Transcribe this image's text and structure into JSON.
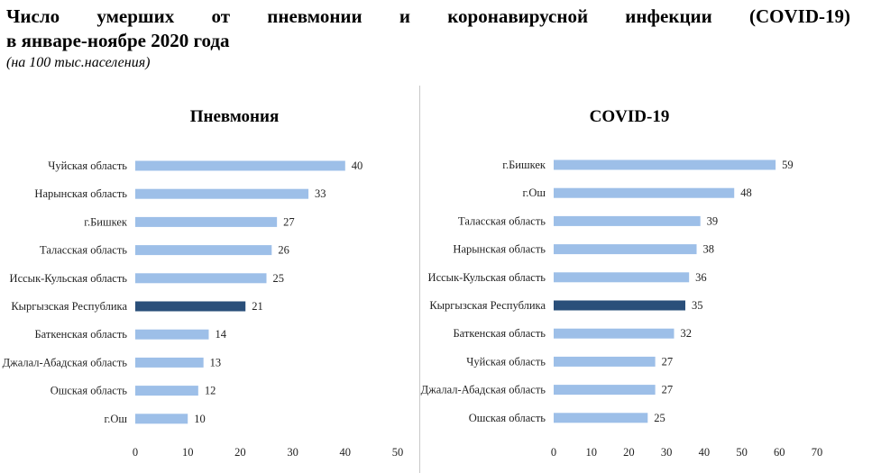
{
  "title_line1": "Число умерших от пневмонии и коронавирусной инфекции (COVID-19)",
  "title_line2": "в январе-ноябре 2020 года",
  "subtitle": "(на 100 тыс.населения)",
  "colors": {
    "bar": "#9dbfe8",
    "highlight": "#2a4f7a"
  },
  "chart_data": [
    {
      "type": "bar",
      "orientation": "horizontal",
      "title": "Пневмония",
      "categories": [
        "Чуйская область",
        "Нарынская область",
        "г.Бишкек",
        "Таласская область",
        "Иссык-Кульская область",
        "Кыргызская Республика",
        "Баткенская область",
        "Джалал-Абадская область",
        "Ошская область",
        "г.Ош"
      ],
      "values": [
        40,
        33,
        27,
        26,
        25,
        21,
        14,
        13,
        12,
        10
      ],
      "highlight_category": "Кыргызская Республика",
      "xlim": [
        0,
        50
      ],
      "xticks": [
        0,
        10,
        20,
        30,
        40,
        50
      ],
      "grid": false
    },
    {
      "type": "bar",
      "orientation": "horizontal",
      "title": "COVID-19",
      "categories": [
        "г.Бишкек",
        "г.Ош",
        "Таласская область",
        "Нарынская область",
        "Иссык-Кульская область",
        "Кыргызская Республика",
        "Баткенская область",
        "Чуйская область",
        "Джалал-Абадская область",
        "Ошская область"
      ],
      "values": [
        59,
        48,
        39,
        38,
        36,
        35,
        32,
        27,
        27,
        25
      ],
      "highlight_category": "Кыргызская Республика",
      "xlim": [
        0,
        70
      ],
      "xticks": [
        0,
        10,
        20,
        30,
        40,
        50,
        60,
        70
      ],
      "grid": false
    }
  ]
}
